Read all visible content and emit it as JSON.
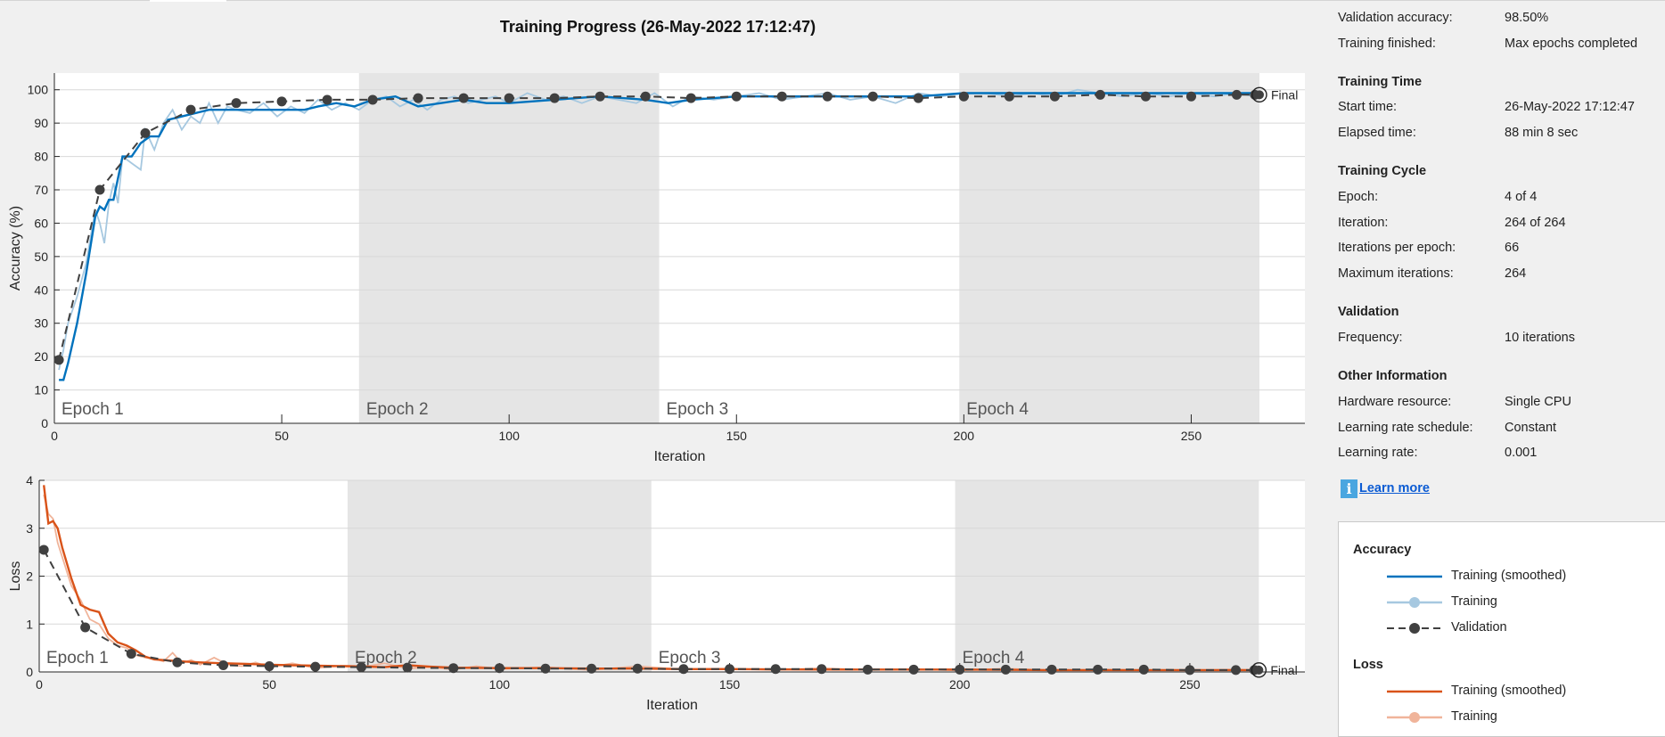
{
  "title": "Training Progress (26-May-2022 17:12:47)",
  "colors": {
    "acc_smoothed": "#0072bd",
    "acc_training": "#a6c8e0",
    "loss_smoothed": "#d95319",
    "loss_training": "#f0b49a",
    "validation": "#404040",
    "epoch_shade": "#e5e5e5"
  },
  "chart_data": [
    {
      "type": "line",
      "ylabel": "Accuracy (%)",
      "xlabel": "Iteration",
      "xlim": [
        0,
        275
      ],
      "ylim": [
        0,
        105
      ],
      "xticks": [
        0,
        50,
        100,
        150,
        200,
        250
      ],
      "yticks": [
        0,
        10,
        20,
        30,
        40,
        50,
        60,
        70,
        80,
        90,
        100
      ],
      "epochs": [
        {
          "label": "Epoch 1",
          "start": 0,
          "end": 67
        },
        {
          "label": "Epoch 2",
          "start": 67,
          "end": 133
        },
        {
          "label": "Epoch 3",
          "start": 133,
          "end": 199
        },
        {
          "label": "Epoch 4",
          "start": 199,
          "end": 265
        }
      ],
      "final_label": "Final",
      "final_point": [
        265,
        98.5
      ],
      "series": [
        {
          "name": "Training (smoothed)",
          "x": [
            1,
            2,
            3,
            5,
            7,
            9,
            10,
            11,
            12,
            13,
            15,
            17,
            19,
            21,
            23,
            25,
            28,
            31,
            34,
            37,
            40,
            45,
            50,
            55,
            58,
            62,
            66,
            70,
            75,
            80,
            85,
            90,
            95,
            100,
            110,
            120,
            130,
            135,
            140,
            150,
            160,
            170,
            180,
            190,
            200,
            210,
            220,
            230,
            240,
            250,
            260,
            264
          ],
          "y": [
            13,
            13,
            18,
            30,
            45,
            62,
            65,
            64,
            67,
            67,
            80,
            80,
            84,
            86,
            86,
            91,
            92,
            93,
            94,
            94,
            94,
            94,
            94,
            94,
            95,
            96,
            95,
            97,
            98,
            95,
            96,
            97,
            96,
            96,
            97,
            98,
            97,
            96,
            97,
            98,
            98,
            98,
            98,
            98,
            99,
            99,
            99,
            99,
            99,
            99,
            99,
            99
          ]
        },
        {
          "name": "Training",
          "x": [
            1,
            2,
            3,
            5,
            7,
            9,
            10,
            11,
            12,
            13,
            14,
            15,
            17,
            19,
            20,
            22,
            24,
            26,
            28,
            30,
            32,
            34,
            36,
            38,
            40,
            43,
            46,
            49,
            52,
            55,
            58,
            61,
            64,
            67,
            70,
            73,
            76,
            79,
            82,
            85,
            88,
            91,
            94,
            97,
            100,
            104,
            108,
            112,
            116,
            120,
            124,
            128,
            132,
            136,
            140,
            145,
            150,
            155,
            160,
            165,
            170,
            175,
            180,
            185,
            190,
            195,
            200,
            205,
            210,
            215,
            220,
            225,
            230,
            235,
            240,
            245,
            250,
            255,
            260,
            264
          ],
          "y": [
            16,
            22,
            30,
            38,
            48,
            64,
            60,
            54,
            66,
            72,
            66,
            80,
            78,
            76,
            88,
            82,
            90,
            94,
            88,
            92,
            90,
            96,
            90,
            95,
            94,
            93,
            96,
            92,
            95,
            93,
            97,
            94,
            96,
            94,
            97,
            98,
            95,
            97,
            94,
            97,
            98,
            96,
            97,
            98,
            96,
            99,
            97,
            98,
            96,
            98,
            97,
            96,
            99,
            95,
            98,
            97,
            98,
            99,
            97,
            98,
            99,
            97,
            98,
            96,
            99,
            98,
            99,
            99,
            98,
            99,
            98,
            100,
            99,
            98,
            99,
            98,
            99,
            98,
            99,
            98
          ]
        },
        {
          "name": "Validation",
          "x": [
            1,
            10,
            20,
            30,
            40,
            50,
            60,
            70,
            80,
            90,
            100,
            110,
            120,
            130,
            140,
            150,
            160,
            170,
            180,
            190,
            200,
            210,
            220,
            230,
            240,
            250,
            260,
            264
          ],
          "y": [
            19,
            70,
            87,
            94,
            96,
            96.5,
            97,
            97,
            97.5,
            97.5,
            97.5,
            97.5,
            98,
            98,
            97.5,
            98,
            98,
            98,
            98,
            97.5,
            98,
            98,
            98,
            98.5,
            98,
            98,
            98.5,
            98.5
          ]
        }
      ]
    },
    {
      "type": "line",
      "ylabel": "Loss",
      "xlabel": "Iteration",
      "xlim": [
        0,
        275
      ],
      "ylim": [
        0,
        4
      ],
      "xticks": [
        0,
        50,
        100,
        150,
        200,
        250
      ],
      "yticks": [
        0,
        1,
        2,
        3,
        4
      ],
      "epochs": [
        {
          "label": "Epoch 1",
          "start": 0,
          "end": 67
        },
        {
          "label": "Epoch 2",
          "start": 67,
          "end": 133
        },
        {
          "label": "Epoch 3",
          "start": 133,
          "end": 199
        },
        {
          "label": "Epoch 4",
          "start": 199,
          "end": 265
        }
      ],
      "final_label": "Final",
      "final_point": [
        265,
        0.04
      ],
      "series": [
        {
          "name": "Training (smoothed)",
          "x": [
            1,
            2,
            3,
            4,
            5,
            7,
            9,
            11,
            13,
            15,
            17,
            19,
            21,
            23,
            25,
            28,
            31,
            35,
            40,
            45,
            50,
            55,
            60,
            67,
            75,
            80,
            85,
            90,
            100,
            110,
            120,
            130,
            140,
            150,
            170,
            190,
            200,
            220,
            240,
            250,
            260,
            264
          ],
          "y": [
            3.9,
            3.1,
            3.15,
            3.0,
            2.6,
            1.95,
            1.4,
            1.3,
            1.25,
            0.8,
            0.62,
            0.55,
            0.45,
            0.32,
            0.26,
            0.24,
            0.22,
            0.2,
            0.18,
            0.17,
            0.15,
            0.14,
            0.13,
            0.12,
            0.1,
            0.14,
            0.11,
            0.09,
            0.08,
            0.08,
            0.07,
            0.07,
            0.06,
            0.06,
            0.05,
            0.05,
            0.05,
            0.04,
            0.04,
            0.04,
            0.04,
            0.04
          ]
        },
        {
          "name": "Training",
          "x": [
            1,
            2,
            3,
            4,
            5,
            7,
            9,
            11,
            13,
            15,
            17,
            19,
            21,
            23,
            25,
            27,
            29,
            31,
            33,
            35,
            38,
            41,
            44,
            47,
            50,
            55,
            60,
            65,
            70,
            75,
            80,
            85,
            90,
            95,
            100,
            110,
            120,
            130,
            140,
            150,
            160,
            170,
            180,
            190,
            200,
            210,
            220,
            230,
            240,
            250,
            260,
            264
          ],
          "y": [
            3.7,
            3.3,
            3.2,
            2.7,
            2.4,
            1.8,
            1.5,
            1.1,
            1.0,
            0.7,
            0.55,
            0.5,
            0.35,
            0.3,
            0.28,
            0.22,
            0.4,
            0.18,
            0.25,
            0.15,
            0.3,
            0.15,
            0.12,
            0.2,
            0.1,
            0.18,
            0.08,
            0.12,
            0.1,
            0.18,
            0.07,
            0.1,
            0.05,
            0.12,
            0.06,
            0.1,
            0.04,
            0.12,
            0.05,
            0.07,
            0.04,
            0.08,
            0.04,
            0.06,
            0.03,
            0.07,
            0.03,
            0.05,
            0.04,
            0.03,
            0.05,
            0.04
          ]
        },
        {
          "name": "Validation",
          "x": [
            1,
            10,
            20,
            30,
            40,
            50,
            60,
            70,
            80,
            90,
            100,
            110,
            120,
            130,
            140,
            150,
            160,
            170,
            180,
            190,
            200,
            210,
            220,
            230,
            240,
            250,
            260,
            264
          ],
          "y": [
            2.55,
            0.93,
            0.38,
            0.2,
            0.14,
            0.12,
            0.11,
            0.1,
            0.09,
            0.08,
            0.08,
            0.07,
            0.07,
            0.07,
            0.06,
            0.06,
            0.06,
            0.06,
            0.05,
            0.05,
            0.05,
            0.05,
            0.05,
            0.05,
            0.05,
            0.04,
            0.04,
            0.04
          ]
        }
      ]
    }
  ],
  "info": {
    "top_rows": [
      {
        "key": "Validation accuracy:",
        "value": "98.50%"
      },
      {
        "key": "Training finished:",
        "value": "Max epochs completed"
      }
    ],
    "sections": [
      {
        "title": "Training Time",
        "rows": [
          {
            "key": "Start time:",
            "value": "26-May-2022 17:12:47"
          },
          {
            "key": "Elapsed time:",
            "value": "88 min 8 sec"
          }
        ]
      },
      {
        "title": "Training Cycle",
        "rows": [
          {
            "key": "Epoch:",
            "value": "4 of 4"
          },
          {
            "key": "Iteration:",
            "value": "264 of 264"
          },
          {
            "key": "Iterations per epoch:",
            "value": "66"
          },
          {
            "key": "Maximum iterations:",
            "value": "264"
          }
        ]
      },
      {
        "title": "Validation",
        "rows": [
          {
            "key": "Frequency:",
            "value": "10 iterations"
          }
        ]
      },
      {
        "title": "Other Information",
        "rows": [
          {
            "key": "Hardware resource:",
            "value": "Single CPU"
          },
          {
            "key": "Learning rate schedule:",
            "value": "Constant"
          },
          {
            "key": "Learning rate:",
            "value": "0.001"
          }
        ]
      }
    ],
    "learn_more": "Learn more",
    "info_icon": "info-icon"
  },
  "legend": {
    "accuracy_title": "Accuracy",
    "loss_title": "Loss",
    "accuracy_items": [
      {
        "label": "Training (smoothed)"
      },
      {
        "label": "Training"
      },
      {
        "label": "Validation"
      }
    ],
    "loss_items": [
      {
        "label": "Training (smoothed)"
      },
      {
        "label": "Training"
      }
    ]
  }
}
